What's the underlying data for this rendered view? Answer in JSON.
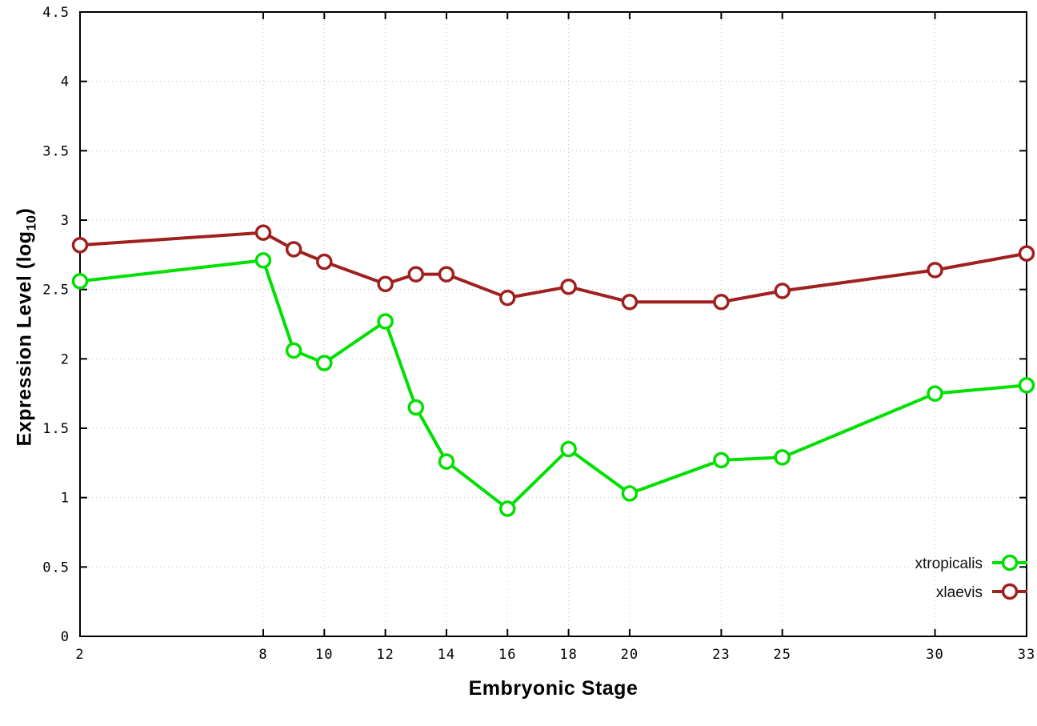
{
  "chart_data": {
    "type": "line",
    "title": "",
    "xlabel": "Embryonic Stage",
    "ylabel": "Expression Level (log10)",
    "ylabel_parts": {
      "main": "Expression Level (log",
      "sub": "10",
      "close": ")"
    },
    "xlim": [
      2,
      33
    ],
    "ylim": [
      0,
      4.5
    ],
    "x_ticks": [
      2,
      8,
      10,
      12,
      14,
      16,
      18,
      20,
      23,
      25,
      30,
      33
    ],
    "y_ticks": [
      0,
      0.5,
      1,
      1.5,
      2,
      2.5,
      3,
      3.5,
      4,
      4.5
    ],
    "grid": true,
    "legend_position": "bottom-right",
    "x": [
      2,
      8,
      9,
      10,
      12,
      13,
      14,
      16,
      18,
      20,
      23,
      25,
      30,
      33
    ],
    "series": [
      {
        "name": "xtropicalis",
        "color": "#00e000",
        "values": [
          2.56,
          2.71,
          2.06,
          1.97,
          2.27,
          1.65,
          1.26,
          0.92,
          1.35,
          1.03,
          1.27,
          1.29,
          1.75,
          1.81
        ]
      },
      {
        "name": "xlaevis",
        "color": "#a02020",
        "values": [
          2.82,
          2.91,
          2.79,
          2.7,
          2.54,
          2.61,
          2.61,
          2.44,
          2.52,
          2.41,
          2.41,
          2.49,
          2.64,
          2.76
        ]
      }
    ],
    "style": {
      "grid_color": "#c8c8c8",
      "axis_color": "#000000",
      "tick_font_size": 17,
      "legend_font_size": 19,
      "line_width": 4,
      "marker_radius": 8.5,
      "marker_stroke": 3.5
    }
  }
}
